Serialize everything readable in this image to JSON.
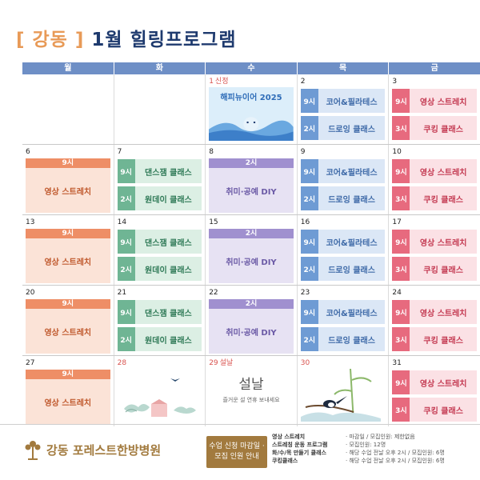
{
  "title": {
    "bracket_text": "[ 강동 ]",
    "main": "1월 힐링프로그램"
  },
  "weekdays": [
    "월",
    "화",
    "수",
    "목",
    "금"
  ],
  "calendar": {
    "r0": {
      "mon": {
        "day": ""
      },
      "tue": {
        "day": ""
      },
      "wed": {
        "day": "1",
        "note": "신정",
        "banner_text": "해피뉴이어 2025"
      },
      "thu": {
        "day": "2",
        "s1_time": "9시",
        "s1_name": "코어&필라테스",
        "s2_time": "2시",
        "s2_name": "드로잉 클래스"
      },
      "fri": {
        "day": "3",
        "s1_time": "9시",
        "s1_name": "영상 스트레치",
        "s2_time": "3시",
        "s2_name": "쿠킹 클래스"
      }
    },
    "r1": {
      "mon": {
        "day": "6",
        "time": "9시",
        "name": "영상 스트레치"
      },
      "tue": {
        "day": "7",
        "s1_time": "9시",
        "s1_name": "댄스잼 클래스",
        "s2_time": "2시",
        "s2_name": "원데이 클래스"
      },
      "wed": {
        "day": "8",
        "time": "2시",
        "name": "취미·공예 DIY"
      },
      "thu": {
        "day": "9",
        "s1_time": "9시",
        "s1_name": "코어&필라테스",
        "s2_time": "2시",
        "s2_name": "드로잉 클래스"
      },
      "fri": {
        "day": "10",
        "s1_time": "9시",
        "s1_name": "영상 스트레치",
        "s2_time": "3시",
        "s2_name": "쿠킹 클래스"
      }
    },
    "r2": {
      "mon": {
        "day": "13",
        "time": "9시",
        "name": "영상 스트레치"
      },
      "tue": {
        "day": "14",
        "s1_time": "9시",
        "s1_name": "댄스잼 클래스",
        "s2_time": "2시",
        "s2_name": "원데이 클래스"
      },
      "wed": {
        "day": "15",
        "time": "2시",
        "name": "취미·공예 DIY"
      },
      "thu": {
        "day": "16",
        "s1_time": "9시",
        "s1_name": "코어&필라테스",
        "s2_time": "2시",
        "s2_name": "드로잉 클래스"
      },
      "fri": {
        "day": "17",
        "s1_time": "9시",
        "s1_name": "영상 스트레치",
        "s2_time": "3시",
        "s2_name": "쿠킹 클래스"
      }
    },
    "r3": {
      "mon": {
        "day": "20",
        "time": "9시",
        "name": "영상 스트레치"
      },
      "tue": {
        "day": "21",
        "s1_time": "9시",
        "s1_name": "댄스잼 클래스",
        "s2_time": "2시",
        "s2_name": "원데이 클래스"
      },
      "wed": {
        "day": "22",
        "time": "2시",
        "name": "취미·공예 DIY"
      },
      "thu": {
        "day": "23",
        "s1_time": "9시",
        "s1_name": "코어&필라테스",
        "s2_time": "2시",
        "s2_name": "드로잉 클래스"
      },
      "fri": {
        "day": "24",
        "s1_time": "9시",
        "s1_name": "영상 스트레치",
        "s2_time": "3시",
        "s2_name": "쿠킹 클래스"
      }
    },
    "r4": {
      "mon": {
        "day": "27",
        "time": "9시",
        "name": "영상 스트레치"
      },
      "tue": {
        "day": "28"
      },
      "wed": {
        "day": "29",
        "note": "설날",
        "seollal": "설날",
        "greeting": "즐거운 설 연휴 보내세요"
      },
      "thu": {
        "day": "30"
      },
      "fri": {
        "day": "31",
        "s1_time": "9시",
        "s1_name": "영상 스트레치",
        "s2_time": "3시",
        "s2_name": "쿠킹 클래스"
      }
    }
  },
  "footer": {
    "hospital_name": "강동 포레스트한방병원",
    "badge_line1": "수업 신청 마감일 ·",
    "badge_line2": "모집 인원 안내",
    "info": [
      {
        "k": "영상 스트레치",
        "v": "· 마감일 / 모집인원: 제한없음"
      },
      {
        "k": "스트레칭 운동 프로그램",
        "v": "· 모집인원: 12명"
      },
      {
        "k": "화/수/목 만들기 클래스",
        "v": "· 해당 수업 전날 오후 2시 / 모집인원: 6명"
      },
      {
        "k": "쿠킹클래스",
        "v": "· 해당 수업 전날 오후 2시 / 모집인원: 6명"
      }
    ]
  },
  "colors": {
    "header": "#6e8fc6",
    "title": "#1e3a6e",
    "accent": "#e89a57",
    "brand": "#a27a3e"
  }
}
